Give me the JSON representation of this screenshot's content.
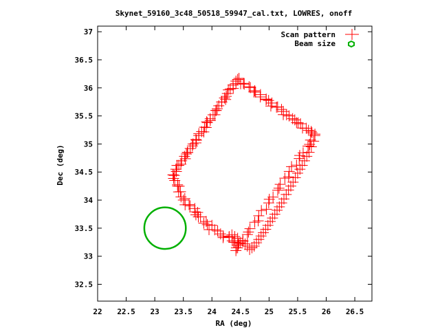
{
  "chart_data": {
    "type": "scatter",
    "title": "Skynet_59160_3c48_50518_59947_cal.txt, LOWRES, onoff",
    "xlabel": "RA (deg)",
    "ylabel": "Dec (deg)",
    "xlim": [
      22,
      26.8
    ],
    "ylim": [
      32.2,
      37.1
    ],
    "xticks": [
      "22",
      "22.5",
      "23",
      "23.5",
      "24",
      "24.5",
      "25",
      "25.5",
      "26",
      "26.5"
    ],
    "yticks": [
      "32.5",
      "33",
      "33.5",
      "34",
      "34.5",
      "35",
      "35.5",
      "36",
      "36.5",
      "37"
    ],
    "grid": false,
    "legend_position": "top-right",
    "series": [
      {
        "name": "Scan pattern",
        "color": "#ff0000",
        "marker": "plus",
        "path_vertices": [
          [
            23.32,
            34.45
          ],
          [
            24.45,
            36.15
          ],
          [
            25.8,
            35.15
          ],
          [
            24.45,
            33.15
          ],
          [
            24.38,
            33.3
          ],
          [
            24.2,
            33.35
          ],
          [
            23.9,
            33.55
          ],
          [
            23.5,
            34.0
          ],
          [
            23.32,
            34.45
          ]
        ],
        "x": [
          23.32,
          23.37,
          23.42,
          23.47,
          23.52,
          23.57,
          23.62,
          23.67,
          23.72,
          23.77,
          23.82,
          23.87,
          23.92,
          23.97,
          24.02,
          24.07,
          24.12,
          24.17,
          24.22,
          24.27,
          24.32,
          24.37,
          24.42,
          24.45,
          24.55,
          24.65,
          24.75,
          24.85,
          24.95,
          25.05,
          25.15,
          25.25,
          25.35,
          25.45,
          25.55,
          25.65,
          25.75,
          25.8,
          25.78,
          25.74,
          25.7,
          25.66,
          25.62,
          25.58,
          25.54,
          25.5,
          25.46,
          25.42,
          25.38,
          25.34,
          25.3,
          25.26,
          25.22,
          25.18,
          25.14,
          25.1,
          25.06,
          25.02,
          24.98,
          24.94,
          24.9,
          24.86,
          24.82,
          24.78,
          24.74,
          24.7,
          24.66,
          24.62,
          24.58,
          24.54,
          24.5,
          24.46,
          24.45,
          24.42,
          24.38,
          24.45,
          24.4,
          24.35,
          24.3,
          24.2,
          24.1,
          24.0,
          23.9,
          23.8,
          23.75,
          23.7,
          23.6,
          23.5,
          23.45,
          23.4,
          23.35,
          23.32
        ],
        "y": [
          34.45,
          34.55,
          34.62,
          34.7,
          34.78,
          34.85,
          34.92,
          35.0,
          35.08,
          35.15,
          35.22,
          35.3,
          35.38,
          35.45,
          35.52,
          35.6,
          35.68,
          35.75,
          35.82,
          35.9,
          35.98,
          36.05,
          36.12,
          36.15,
          36.08,
          36.02,
          35.95,
          35.88,
          35.8,
          35.73,
          35.66,
          35.58,
          35.5,
          35.43,
          35.36,
          35.28,
          35.2,
          35.15,
          35.05,
          34.95,
          34.85,
          34.78,
          34.7,
          34.62,
          34.55,
          34.48,
          34.4,
          34.32,
          34.25,
          34.18,
          34.1,
          34.02,
          33.95,
          33.88,
          33.82,
          33.75,
          33.68,
          33.62,
          33.55,
          33.48,
          33.42,
          33.36,
          33.3,
          33.24,
          33.18,
          33.15,
          33.12,
          33.18,
          33.22,
          33.28,
          33.24,
          33.2,
          33.15,
          33.1,
          33.25,
          33.32,
          33.35,
          33.38,
          33.34,
          33.36,
          33.45,
          33.55,
          33.62,
          33.7,
          33.78,
          33.85,
          33.92,
          34.0,
          34.15,
          34.25,
          34.35,
          34.45
        ]
      },
      {
        "name": "Beam size",
        "color": "#00b000",
        "marker": "circle",
        "center": [
          23.18,
          33.5
        ],
        "radius_deg": 0.37
      }
    ]
  }
}
